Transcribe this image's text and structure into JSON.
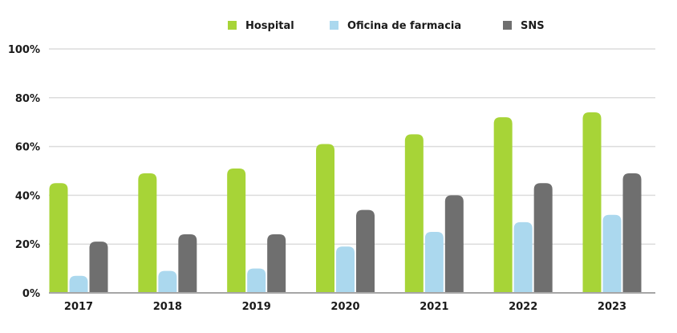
{
  "chart_data": {
    "type": "bar",
    "title": "",
    "xlabel": "",
    "ylabel": "",
    "categories": [
      "2017",
      "2018",
      "2019",
      "2020",
      "2021",
      "2022",
      "2023"
    ],
    "series": [
      {
        "name": "Hospital",
        "color": "#a7d437",
        "values": [
          45,
          49,
          51,
          61,
          65,
          72,
          74
        ]
      },
      {
        "name": "Oficina de farmacia",
        "color": "#abd8ee",
        "values": [
          7,
          9,
          10,
          19,
          25,
          29,
          32
        ]
      },
      {
        "name": "SNS",
        "color": "#6f6f6f",
        "values": [
          21,
          24,
          24,
          34,
          40,
          45,
          49
        ]
      }
    ],
    "ylim": [
      0,
      100
    ],
    "yticks": [
      0,
      20,
      40,
      60,
      80,
      100
    ],
    "ytick_labels": [
      "0%",
      "20%",
      "40%",
      "60%",
      "80%",
      "100%"
    ],
    "grid": true,
    "legend_position": "top-center"
  }
}
